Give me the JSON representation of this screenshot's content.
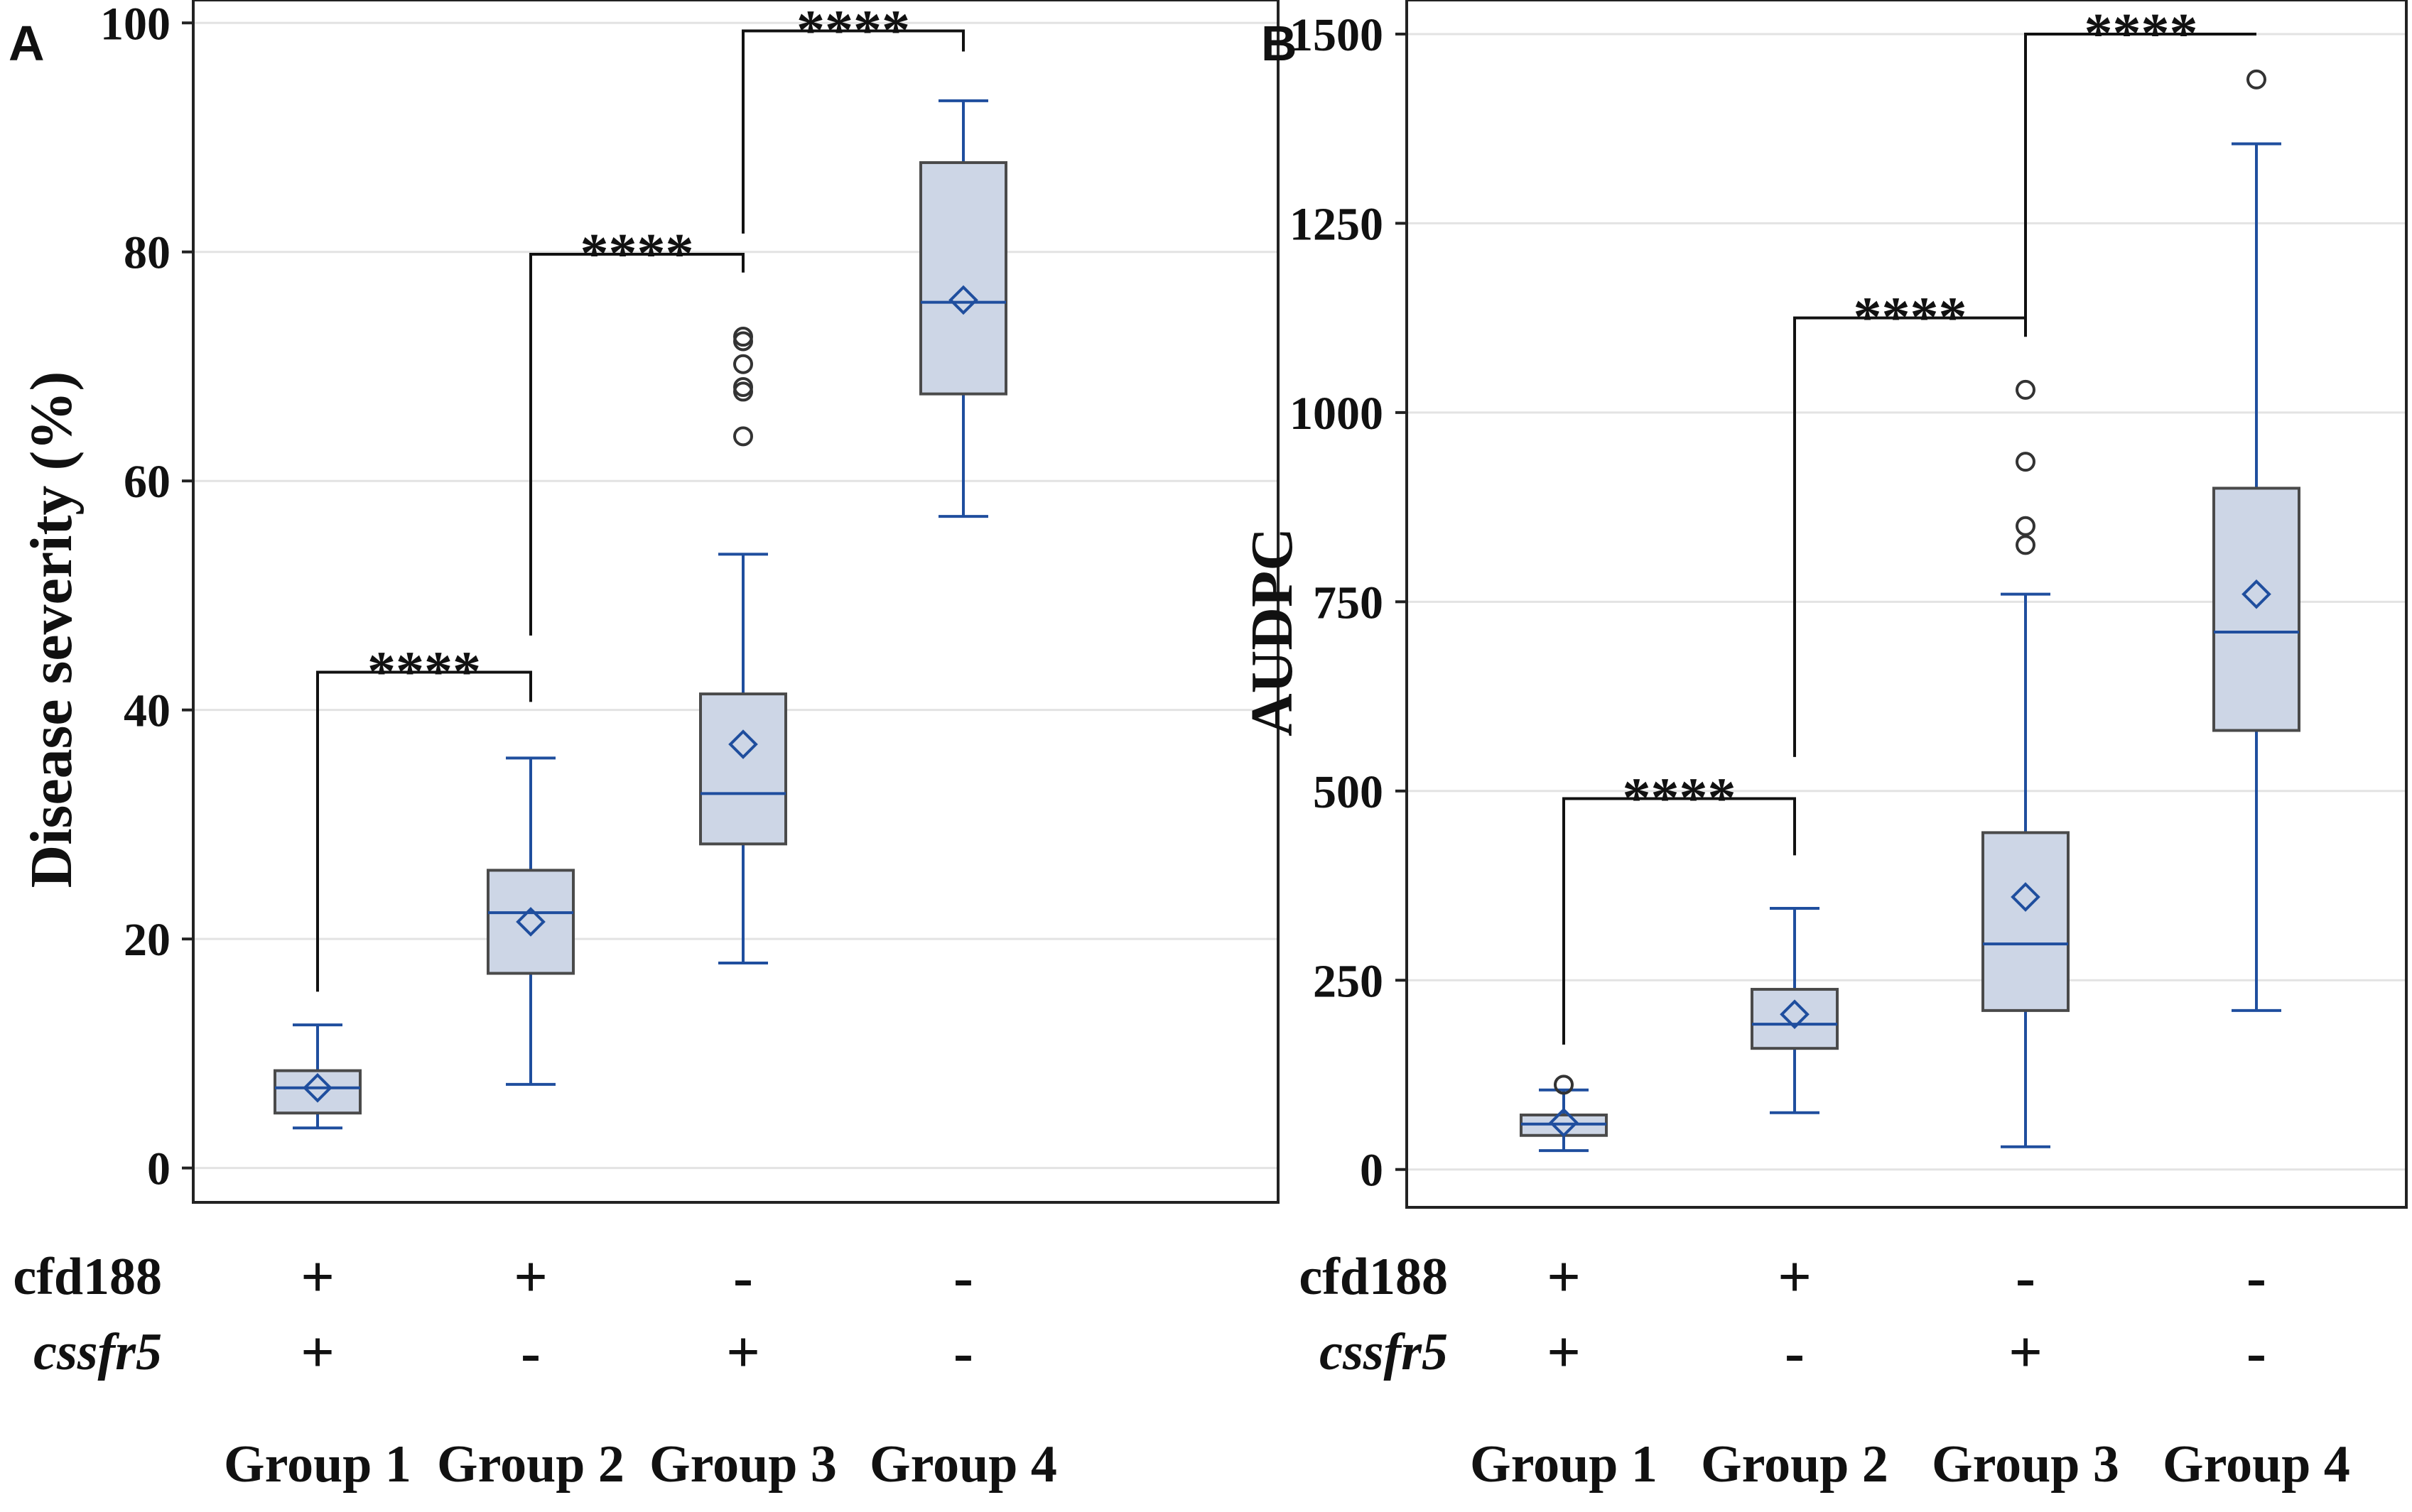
{
  "colors": {
    "box_fill": "#cdd6e6",
    "box_stroke": "#4a4a4a",
    "whisker": "#1f4e9e",
    "median": "#1f4e9e",
    "mean_marker": "#1f4e9e",
    "outlier": "#333333",
    "grid": "#e3e3e3",
    "axis": "#222222",
    "bracket": "#111111",
    "text": "#111111"
  },
  "groups": [
    "Group 1",
    "Group 2",
    "Group 3",
    "Group 4"
  ],
  "genotype_rows": [
    {
      "marker": "cfd188",
      "italic": false,
      "values": [
        "+",
        "+",
        "-",
        "-"
      ]
    },
    {
      "marker": "cssfr5",
      "italic": true,
      "values": [
        "+",
        "-",
        "+",
        "-"
      ]
    }
  ],
  "chart_data": [
    {
      "type": "box",
      "panel_label": "A",
      "title": "",
      "xlabel": "",
      "ylabel": "Disease severity (%)",
      "ylim": [
        -3,
        102
      ],
      "yticks": [
        0,
        20,
        40,
        60,
        80,
        100
      ],
      "grid": true,
      "categories": [
        "Group 1",
        "Group 2",
        "Group 3",
        "Group 4"
      ],
      "boxes": [
        {
          "min": 3.5,
          "q1": 4.8,
          "median": 7.0,
          "q3": 8.5,
          "max": 12.5,
          "mean": 7.0,
          "outliers": []
        },
        {
          "min": 7.3,
          "q1": 17.0,
          "median": 22.3,
          "q3": 26.0,
          "max": 35.8,
          "mean": 21.5,
          "outliers": []
        },
        {
          "min": 17.9,
          "q1": 28.3,
          "median": 32.7,
          "q3": 41.4,
          "max": 53.6,
          "mean": 37.0,
          "outliers": [
            63.9,
            67.8,
            68.2,
            70.2,
            72.2,
            72.6
          ]
        },
        {
          "min": 56.9,
          "q1": 67.6,
          "median": 75.6,
          "q3": 87.8,
          "max": 93.2,
          "mean": 75.8,
          "outliers": []
        }
      ],
      "comparisons": [
        {
          "from": 0,
          "to": 1,
          "label": "****",
          "y_from": 15.4,
          "y_to": 40.7,
          "y_top": 43.3
        },
        {
          "from": 1,
          "to": 2,
          "label": "****",
          "y_from": 46.5,
          "y_to": 78.2,
          "y_top": 79.8
        },
        {
          "from": 2,
          "to": 3,
          "label": "****",
          "y_from": 81.6,
          "y_to": 97.5,
          "y_top": 99.3
        }
      ]
    },
    {
      "type": "box",
      "panel_label": "B",
      "title": "",
      "xlabel": "",
      "ylabel": "AUDPC",
      "ylim": [
        -50,
        1545
      ],
      "yticks": [
        0,
        250,
        500,
        750,
        1000,
        1250,
        1500
      ],
      "grid": true,
      "categories": [
        "Group 1",
        "Group 2",
        "Group 3",
        "Group 4"
      ],
      "boxes": [
        {
          "min": 25,
          "q1": 45,
          "median": 60,
          "q3": 72,
          "max": 105,
          "mean": 62,
          "outliers": [
            112
          ]
        },
        {
          "min": 75,
          "q1": 160,
          "median": 192,
          "q3": 238,
          "max": 345,
          "mean": 205,
          "outliers": []
        },
        {
          "min": 30,
          "q1": 210,
          "median": 298,
          "q3": 445,
          "max": 760,
          "mean": 360,
          "outliers": [
            825,
            850,
            935,
            1030
          ]
        },
        {
          "min": 210,
          "q1": 580,
          "median": 710,
          "q3": 900,
          "max": 1355,
          "mean": 760,
          "outliers": [
            1440
          ]
        }
      ],
      "comparisons": [
        {
          "from": 0,
          "to": 1,
          "label": "****",
          "y_from": 165,
          "y_to": 415,
          "y_top": 490
        },
        {
          "from": 1,
          "to": 2,
          "label": "****",
          "y_from": 545,
          "y_to": 1100,
          "y_top": 1125
        },
        {
          "from": 2,
          "to": 3,
          "label": "****",
          "y_from": 1125,
          "y_to": 1500,
          "y_top": 1500
        }
      ]
    }
  ]
}
